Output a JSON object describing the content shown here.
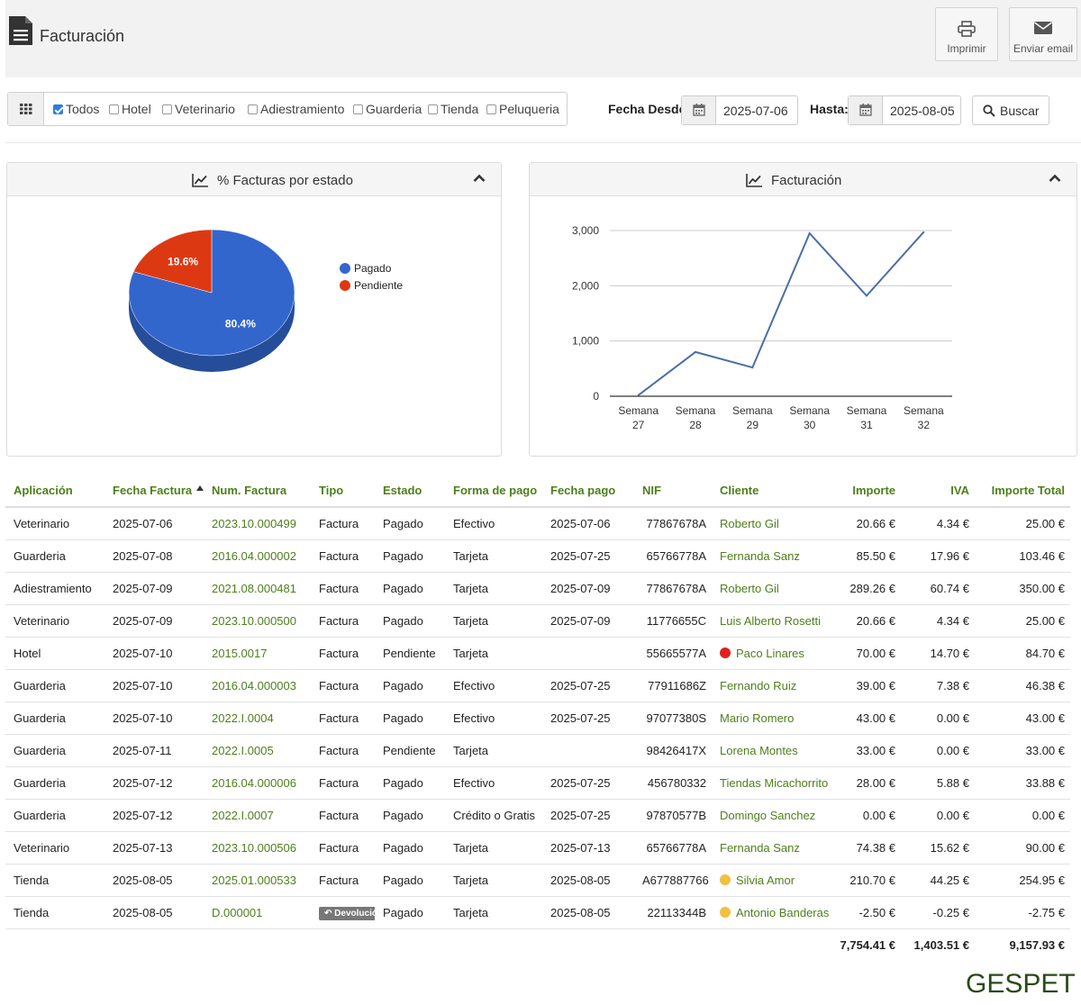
{
  "header": {
    "title": "Facturación",
    "print_label": "Imprimir",
    "email_label": "Enviar email"
  },
  "filters": {
    "options": [
      {
        "label": "Todos",
        "checked": true
      },
      {
        "label": "Hotel",
        "checked": false
      },
      {
        "label": "Veterinario",
        "checked": false
      },
      {
        "label": "Adiestramiento",
        "checked": false
      },
      {
        "label": "Guarderia",
        "checked": false
      },
      {
        "label": "Tienda",
        "checked": false
      },
      {
        "label": "Peluqueria",
        "checked": false
      }
    ],
    "date_from_label": "Fecha Desde:",
    "date_from": "2025-07-06",
    "date_to_label": "Hasta:",
    "date_to": "2025-08-05",
    "search_label": "Buscar"
  },
  "pie_panel": {
    "title": "% Facturas por estado"
  },
  "line_panel": {
    "title": "Facturación"
  },
  "chart_data": [
    {
      "type": "pie",
      "labels": [
        "Pagado",
        "Pendiente"
      ],
      "values": [
        80.4,
        19.6
      ],
      "value_labels": [
        "80.4%",
        "19.6%"
      ],
      "colors": [
        "#3366cc",
        "#dc3912"
      ],
      "legend": "right"
    },
    {
      "type": "line",
      "categories": [
        "Semana 27",
        "Semana 28",
        "Semana 29",
        "Semana 30",
        "Semana 31",
        "Semana 32"
      ],
      "values": [
        20,
        800,
        520,
        2950,
        1820,
        2970
      ],
      "yticks": [
        "0",
        "1,000",
        "2,000",
        "3,000"
      ],
      "ylim": [
        0,
        3000
      ],
      "grid": true,
      "color": "#4a6fa5"
    }
  ],
  "table": {
    "columns": [
      "Aplicación",
      "Fecha Factura",
      "Num. Factura",
      "Tipo",
      "Estado",
      "Forma de pago",
      "Fecha pago",
      "NIF",
      "Cliente",
      "Importe",
      "IVA",
      "Importe Total"
    ],
    "rows": [
      {
        "app": "Veterinario",
        "fecha": "2025-07-06",
        "num": "2023.10.000499",
        "tipo": "Factura",
        "estado": "Pagado",
        "forma": "Efectivo",
        "fpago": "2025-07-06",
        "nif": "77867678A",
        "cliente": "Roberto Gil",
        "dot": "",
        "importe": "20.66 €",
        "iva": "4.34 €",
        "total": "25.00 €"
      },
      {
        "app": "Guarderia",
        "fecha": "2025-07-08",
        "num": "2016.04.000002",
        "tipo": "Factura",
        "estado": "Pagado",
        "forma": "Tarjeta",
        "fpago": "2025-07-25",
        "nif": "65766778A",
        "cliente": "Fernanda Sanz",
        "dot": "",
        "importe": "85.50 €",
        "iva": "17.96 €",
        "total": "103.46 €"
      },
      {
        "app": "Adiestramiento",
        "fecha": "2025-07-09",
        "num": "2021.08.000481",
        "tipo": "Factura",
        "estado": "Pagado",
        "forma": "Tarjeta",
        "fpago": "2025-07-09",
        "nif": "77867678A",
        "cliente": "Roberto Gil",
        "dot": "",
        "importe": "289.26 €",
        "iva": "60.74 €",
        "total": "350.00 €"
      },
      {
        "app": "Veterinario",
        "fecha": "2025-07-09",
        "num": "2023.10.000500",
        "tipo": "Factura",
        "estado": "Pagado",
        "forma": "Tarjeta",
        "fpago": "2025-07-09",
        "nif": "11776655C",
        "cliente": "Luis Alberto Rosetti",
        "dot": "",
        "importe": "20.66 €",
        "iva": "4.34 €",
        "total": "25.00 €"
      },
      {
        "app": "Hotel",
        "fecha": "2025-07-10",
        "num": "2015.0017",
        "tipo": "Factura",
        "estado": "Pendiente",
        "forma": "Tarjeta",
        "fpago": "",
        "nif": "55665577A",
        "cliente": "Paco Linares",
        "dot": "#e02020",
        "importe": "70.00 €",
        "iva": "14.70 €",
        "total": "84.70 €"
      },
      {
        "app": "Guarderia",
        "fecha": "2025-07-10",
        "num": "2016.04.000003",
        "tipo": "Factura",
        "estado": "Pagado",
        "forma": "Efectivo",
        "fpago": "2025-07-25",
        "nif": "77911686Z",
        "cliente": "Fernando Ruiz",
        "dot": "",
        "importe": "39.00 €",
        "iva": "7.38 €",
        "total": "46.38 €"
      },
      {
        "app": "Guarderia",
        "fecha": "2025-07-10",
        "num": "2022.I.0004",
        "tipo": "Factura",
        "estado": "Pagado",
        "forma": "Efectivo",
        "fpago": "2025-07-25",
        "nif": "97077380S",
        "cliente": "Mario Romero",
        "dot": "",
        "importe": "43.00 €",
        "iva": "0.00 €",
        "total": "43.00 €"
      },
      {
        "app": "Guarderia",
        "fecha": "2025-07-11",
        "num": "2022.I.0005",
        "tipo": "Factura",
        "estado": "Pendiente",
        "forma": "Tarjeta",
        "fpago": "",
        "nif": "98426417X",
        "cliente": "Lorena Montes",
        "dot": "",
        "importe": "33.00 €",
        "iva": "0.00 €",
        "total": "33.00 €"
      },
      {
        "app": "Guarderia",
        "fecha": "2025-07-12",
        "num": "2016.04.000006",
        "tipo": "Factura",
        "estado": "Pagado",
        "forma": "Efectivo",
        "fpago": "2025-07-25",
        "nif": "456780332",
        "cliente": "Tiendas Micachorrito",
        "dot": "",
        "importe": "28.00 €",
        "iva": "5.88 €",
        "total": "33.88 €"
      },
      {
        "app": "Guarderia",
        "fecha": "2025-07-12",
        "num": "2022.I.0007",
        "tipo": "Factura",
        "estado": "Pagado",
        "forma": "Crédito o Gratis",
        "fpago": "2025-07-25",
        "nif": "97870577B",
        "cliente": "Domingo Sanchez",
        "dot": "",
        "importe": "0.00 €",
        "iva": "0.00 €",
        "total": "0.00 €"
      },
      {
        "app": "Veterinario",
        "fecha": "2025-07-13",
        "num": "2023.10.000506",
        "tipo": "Factura",
        "estado": "Pagado",
        "forma": "Tarjeta",
        "fpago": "2025-07-13",
        "nif": "65766778A",
        "cliente": "Fernanda Sanz",
        "dot": "",
        "importe": "74.38 €",
        "iva": "15.62 €",
        "total": "90.00 €"
      },
      {
        "app": "Tienda",
        "fecha": "2025-08-05",
        "num": "2025.01.000533",
        "tipo": "Factura",
        "estado": "Pagado",
        "forma": "Tarjeta",
        "fpago": "2025-08-05",
        "nif": "A677887766",
        "cliente": "Silvia Amor",
        "dot": "#f0c040",
        "importe": "210.70 €",
        "iva": "44.25 €",
        "total": "254.95 €"
      },
      {
        "app": "Tienda",
        "fecha": "2025-08-05",
        "num": "D.000001",
        "tipo": "",
        "badge": "Devolución",
        "estado": "Pagado",
        "forma": "Tarjeta",
        "fpago": "2025-08-05",
        "nif": "22113344B",
        "cliente": "Antonio Banderas",
        "dot": "#f0c040",
        "importe": "-2.50 €",
        "iva": "-0.25 €",
        "total": "-2.75 €"
      }
    ],
    "totals": {
      "importe": "7,754.41 €",
      "iva": "1,403.51 €",
      "total": "9,157.93 €"
    }
  },
  "logo": "GESPET"
}
